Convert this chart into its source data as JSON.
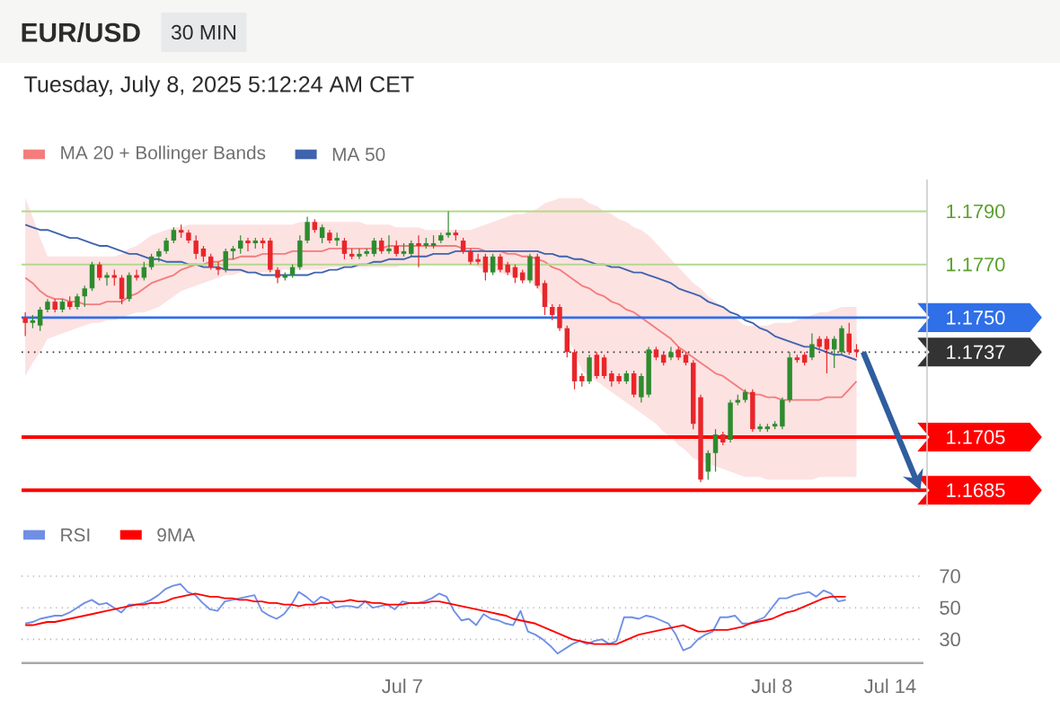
{
  "chart_data": [
    {
      "type": "candlestick",
      "title": "EUR/USD",
      "subtitle": "Tuesday, July 8, 2025 5:12:24 AM CET",
      "annotations": [
        "30 MIN"
      ],
      "categories": [
        null,
        null,
        null,
        null,
        null,
        null,
        null,
        null,
        null,
        null,
        null,
        null,
        null,
        null,
        null,
        null,
        null,
        null,
        null,
        null,
        null,
        null,
        null,
        null,
        null,
        null,
        null,
        null,
        null,
        null,
        null,
        null,
        null,
        null,
        null,
        null,
        null,
        null,
        null,
        null,
        null,
        null,
        null,
        null,
        null,
        null,
        null,
        null,
        null,
        null,
        null,
        null,
        null,
        null,
        null,
        null,
        null,
        null,
        null,
        null,
        null,
        null,
        null,
        null,
        null,
        null,
        null,
        null,
        null,
        null,
        null,
        null,
        null,
        null,
        null,
        null,
        null,
        null,
        null,
        null,
        null,
        null,
        null,
        null,
        null,
        null,
        null,
        null,
        null,
        null,
        null,
        null,
        null,
        null,
        null,
        null,
        null,
        null,
        null,
        null,
        null,
        null,
        null,
        null,
        null,
        null,
        null,
        null,
        null,
        null,
        null,
        null,
        null
      ],
      "ohlc": [
        [
          1.175,
          1.1752,
          1.1743,
          1.1748
        ],
        [
          1.1748,
          1.1751,
          1.1746,
          1.1749
        ],
        [
          1.1747,
          1.1754,
          1.1745,
          1.1753
        ],
        [
          1.1753,
          1.1757,
          1.1752,
          1.1756
        ],
        [
          1.1756,
          1.1757,
          1.1752,
          1.1753
        ],
        [
          1.1753,
          1.1757,
          1.1752,
          1.1756
        ],
        [
          1.1756,
          1.1758,
          1.1753,
          1.1754
        ],
        [
          1.1754,
          1.1759,
          1.1753,
          1.1758
        ],
        [
          1.1758,
          1.1762,
          1.1754,
          1.1761
        ],
        [
          1.1761,
          1.1771,
          1.176,
          1.177
        ],
        [
          1.177,
          1.1771,
          1.1764,
          1.1765
        ],
        [
          1.1765,
          1.1767,
          1.1762,
          1.1766
        ],
        [
          1.1766,
          1.1768,
          1.1762,
          1.1765
        ],
        [
          1.1765,
          1.1766,
          1.1755,
          1.1757
        ],
        [
          1.1757,
          1.1767,
          1.1756,
          1.1766
        ],
        [
          1.1766,
          1.1768,
          1.1764,
          1.1765
        ],
        [
          1.1765,
          1.1771,
          1.1764,
          1.1769
        ],
        [
          1.1769,
          1.1774,
          1.1768,
          1.1773
        ],
        [
          1.1773,
          1.1776,
          1.1771,
          1.1775
        ],
        [
          1.1775,
          1.178,
          1.1774,
          1.1779
        ],
        [
          1.1779,
          1.1784,
          1.1778,
          1.1783
        ],
        [
          1.1783,
          1.1785,
          1.178,
          1.1782
        ],
        [
          1.1782,
          1.1783,
          1.1778,
          1.1779
        ],
        [
          1.1779,
          1.1781,
          1.1772,
          1.1774
        ],
        [
          1.1776,
          1.1777,
          1.1771,
          1.1773
        ],
        [
          1.1773,
          1.1774,
          1.1768,
          1.1769
        ],
        [
          1.1769,
          1.1771,
          1.1766,
          1.1768
        ],
        [
          1.1768,
          1.1776,
          1.1767,
          1.1775
        ],
        [
          1.1775,
          1.1777,
          1.1772,
          1.1776
        ],
        [
          1.1776,
          1.1781,
          1.1774,
          1.1779
        ],
        [
          1.1779,
          1.178,
          1.1775,
          1.1778
        ],
        [
          1.1778,
          1.178,
          1.1776,
          1.1779
        ],
        [
          1.1779,
          1.178,
          1.1776,
          1.1778
        ],
        [
          1.1779,
          1.178,
          1.1767,
          1.1768
        ],
        [
          1.1768,
          1.1769,
          1.1763,
          1.1765
        ],
        [
          1.1765,
          1.1767,
          1.1764,
          1.1766
        ],
        [
          1.1766,
          1.177,
          1.1765,
          1.1769
        ],
        [
          1.1769,
          1.1781,
          1.1768,
          1.1779
        ],
        [
          1.1779,
          1.1788,
          1.1778,
          1.1786
        ],
        [
          1.1786,
          1.1787,
          1.1782,
          1.1783
        ],
        [
          1.178,
          1.1785,
          1.1778,
          1.1784
        ],
        [
          1.1782,
          1.1783,
          1.1778,
          1.1779
        ],
        [
          1.1779,
          1.1782,
          1.1777,
          1.178
        ],
        [
          1.1779,
          1.178,
          1.1772,
          1.1774
        ],
        [
          1.1774,
          1.1776,
          1.1772,
          1.1773
        ],
        [
          1.1773,
          1.1776,
          1.1772,
          1.1774
        ],
        [
          1.1774,
          1.1776,
          1.1773,
          1.1775
        ],
        [
          1.1774,
          1.178,
          1.1773,
          1.1779
        ],
        [
          1.1779,
          1.178,
          1.1774,
          1.1775
        ],
        [
          1.1775,
          1.1781,
          1.1774,
          1.1776
        ],
        [
          1.1777,
          1.1779,
          1.1773,
          1.1774
        ],
        [
          1.1774,
          1.1778,
          1.1773,
          1.1775
        ],
        [
          1.1774,
          1.1779,
          1.1773,
          1.1778
        ],
        [
          1.1778,
          1.1781,
          1.1769,
          1.1777
        ],
        [
          1.1777,
          1.178,
          1.1776,
          1.1778
        ],
        [
          1.1777,
          1.1781,
          1.1776,
          1.1778
        ],
        [
          1.1779,
          1.1782,
          1.1778,
          1.1781
        ],
        [
          1.1781,
          1.179,
          1.178,
          1.1782
        ],
        [
          1.1782,
          1.1783,
          1.1779,
          1.1781
        ],
        [
          1.1779,
          1.178,
          1.1774,
          1.1775
        ],
        [
          1.1775,
          1.1776,
          1.177,
          1.1771
        ],
        [
          1.1772,
          1.1774,
          1.177,
          1.1771
        ],
        [
          1.1773,
          1.1774,
          1.1764,
          1.1767
        ],
        [
          1.1767,
          1.1774,
          1.1766,
          1.1773
        ],
        [
          1.1773,
          1.1774,
          1.1767,
          1.1768
        ],
        [
          1.177,
          1.1771,
          1.1766,
          1.1767
        ],
        [
          1.1769,
          1.177,
          1.1763,
          1.1765
        ],
        [
          1.1767,
          1.1768,
          1.1763,
          1.1764
        ],
        [
          1.1764,
          1.1774,
          1.1763,
          1.1773
        ],
        [
          1.1773,
          1.1774,
          1.1761,
          1.1762
        ],
        [
          1.1763,
          1.1764,
          1.1751,
          1.1754
        ],
        [
          1.1754,
          1.1755,
          1.1749,
          1.1751
        ],
        [
          1.1754,
          1.1755,
          1.1745,
          1.1746
        ],
        [
          1.1746,
          1.1747,
          1.1735,
          1.1737
        ],
        [
          1.1737,
          1.1738,
          1.1723,
          1.1726
        ],
        [
          1.1728,
          1.1729,
          1.1724,
          1.1726
        ],
        [
          1.1726,
          1.1736,
          1.1725,
          1.1735
        ],
        [
          1.1736,
          1.1737,
          1.1727,
          1.1728
        ],
        [
          1.1735,
          1.1736,
          1.1727,
          1.1728
        ],
        [
          1.1729,
          1.173,
          1.1724,
          1.1726
        ],
        [
          1.1728,
          1.1729,
          1.1725,
          1.1726
        ],
        [
          1.1726,
          1.173,
          1.1725,
          1.1729
        ],
        [
          1.1729,
          1.173,
          1.172,
          1.1721
        ],
        [
          1.172,
          1.1729,
          1.1718,
          1.1728
        ],
        [
          1.1721,
          1.1739,
          1.172,
          1.1738
        ],
        [
          1.1738,
          1.1739,
          1.1734,
          1.1735
        ],
        [
          1.1736,
          1.1737,
          1.1732,
          1.1733
        ],
        [
          1.1735,
          1.1739,
          1.1734,
          1.1737
        ],
        [
          1.1738,
          1.1739,
          1.1734,
          1.1735
        ],
        [
          1.1736,
          1.1737,
          1.1732,
          1.1733
        ],
        [
          1.1733,
          1.1734,
          1.1708,
          1.171
        ],
        [
          1.172,
          1.1721,
          1.1688,
          1.1689
        ],
        [
          1.1692,
          1.17,
          1.1689,
          1.1699
        ],
        [
          1.1699,
          1.1708,
          1.1692,
          1.1706
        ],
        [
          1.1706,
          1.1707,
          1.1702,
          1.1703
        ],
        [
          1.1704,
          1.1719,
          1.1703,
          1.1718
        ],
        [
          1.1718,
          1.1721,
          1.1717,
          1.1719
        ],
        [
          1.1719,
          1.1723,
          1.1718,
          1.1722
        ],
        [
          1.1722,
          1.1723,
          1.1707,
          1.1708
        ],
        [
          1.1708,
          1.171,
          1.1707,
          1.1709
        ],
        [
          1.1708,
          1.171,
          1.1707,
          1.1709
        ],
        [
          1.1709,
          1.1711,
          1.1708,
          1.171
        ],
        [
          1.1709,
          1.172,
          1.1708,
          1.1719
        ],
        [
          1.1719,
          1.1737,
          1.1718,
          1.1735
        ],
        [
          1.1735,
          1.1736,
          1.1733,
          1.1734
        ],
        [
          1.1736,
          1.1737,
          1.1732,
          1.1733
        ],
        [
          1.1735,
          1.1744,
          1.1734,
          1.174
        ],
        [
          1.1742,
          1.1743,
          1.1738,
          1.1739
        ],
        [
          1.1742,
          1.1743,
          1.1729,
          1.1738
        ],
        [
          1.1738,
          1.1743,
          1.1731,
          1.1742
        ],
        [
          1.1737,
          1.1747,
          1.1736,
          1.1746
        ],
        [
          1.1744,
          1.1748,
          1.1736,
          1.1737
        ],
        [
          1.1738,
          1.174,
          1.1735,
          1.1737
        ]
      ],
      "colors": [
        "#e8262a",
        "#2e8b2e",
        "#2e8b2e",
        "#2e8b2e",
        "#e8262a",
        "#2e8b2e",
        "#e8262a",
        "#2e8b2e",
        "#2e8b2e",
        "#2e8b2e",
        "#e8262a",
        "#2e8b2e",
        "#e8262a",
        "#e8262a",
        "#2e8b2e",
        "#e8262a",
        "#2e8b2e",
        "#2e8b2e",
        "#2e8b2e",
        "#2e8b2e",
        "#2e8b2e",
        "#e8262a",
        "#e8262a",
        "#e8262a",
        "#e8262a",
        "#e8262a",
        "#e8262a",
        "#2e8b2e",
        "#2e8b2e",
        "#2e8b2e",
        "#e8262a",
        "#2e8b2e",
        "#e8262a",
        "#e8262a",
        "#e8262a",
        "#2e8b2e",
        "#2e8b2e",
        "#2e8b2e",
        "#2e8b2e",
        "#e8262a",
        "#2e8b2e",
        "#e8262a",
        "#2e8b2e",
        "#e8262a",
        "#e8262a",
        "#2e8b2e",
        "#2e8b2e",
        "#2e8b2e",
        "#e8262a",
        "#2e8b2e",
        "#e8262a",
        "#2e8b2e",
        "#2e8b2e",
        "#e8262a",
        "#2e8b2e",
        "#2e8b2e",
        "#2e8b2e",
        "#2e8b2e",
        "#e8262a",
        "#e8262a",
        "#e8262a",
        "#e8262a",
        "#e8262a",
        "#2e8b2e",
        "#e8262a",
        "#e8262a",
        "#e8262a",
        "#e8262a",
        "#2e8b2e",
        "#e8262a",
        "#e8262a",
        "#e8262a",
        "#e8262a",
        "#e8262a",
        "#e8262a",
        "#e8262a",
        "#2e8b2e",
        "#e8262a",
        "#e8262a",
        "#e8262a",
        "#e8262a",
        "#2e8b2e",
        "#e8262a",
        "#2e8b2e",
        "#2e8b2e",
        "#e8262a",
        "#e8262a",
        "#2e8b2e",
        "#e8262a",
        "#e8262a",
        "#e8262a",
        "#e8262a",
        "#2e8b2e",
        "#2e8b2e",
        "#e8262a",
        "#2e8b2e",
        "#2e8b2e",
        "#2e8b2e",
        "#e8262a",
        "#2e8b2e",
        "#2e8b2e",
        "#2e8b2e",
        "#2e8b2e",
        "#2e8b2e",
        "#e8262a",
        "#e8262a",
        "#2e8b2e",
        "#e8262a",
        "#e8262a",
        "#2e8b2e",
        "#2e8b2e",
        "#e8262a",
        "#e8262a"
      ],
      "series": [
        {
          "name": "MA 20 + Bollinger Bands",
          "type": "line",
          "color": "#f47c7c",
          "values": [
            1.1765,
            1.1763,
            1.176,
            1.1758,
            1.1757,
            1.1757,
            1.1756,
            1.1756,
            1.1755,
            1.1755,
            1.1755,
            1.1756,
            1.1756,
            1.1756,
            1.1758,
            1.1759,
            1.1761,
            1.1763,
            1.1764,
            1.1765,
            1.1766,
            1.1768,
            1.1769,
            1.177,
            1.177,
            1.1771,
            1.1771,
            1.1772,
            1.1772,
            1.1773,
            1.1773,
            1.1773,
            1.1774,
            1.1774,
            1.1774,
            1.1774,
            1.1775,
            1.1775,
            1.1775,
            1.1775,
            1.1775,
            1.1776,
            1.1776,
            1.1776,
            1.1776,
            1.1776,
            1.1776,
            1.1776,
            1.1776,
            1.1777,
            1.1777,
            1.1777,
            1.1777,
            1.1777,
            1.1777,
            1.1777,
            1.1777,
            1.1777,
            1.1777,
            1.1776,
            1.1776,
            1.1776,
            1.1775,
            1.1775,
            1.1775,
            1.1774,
            1.1774,
            1.1773,
            1.1773,
            1.1772,
            1.1771,
            1.1769,
            1.1768,
            1.1766,
            1.1764,
            1.1762,
            1.1761,
            1.1759,
            1.1758,
            1.1756,
            1.1755,
            1.1753,
            1.1752,
            1.175,
            1.1748,
            1.1746,
            1.1744,
            1.1742,
            1.1739,
            1.1737,
            1.1735,
            1.1733,
            1.1731,
            1.1729,
            1.1728,
            1.1726,
            1.1724,
            1.1722,
            1.1721,
            1.1721,
            1.172,
            1.172,
            1.1719,
            1.1719,
            1.1719,
            1.1719,
            1.1719,
            1.1719,
            1.172,
            1.172,
            1.172,
            1.1723,
            1.1726
          ],
          "upper": [
            1.1795,
            1.1788,
            1.178,
            1.1773,
            1.1773,
            1.1773,
            1.1773,
            1.1773,
            1.1773,
            1.1773,
            1.1773,
            1.1773,
            1.1773,
            1.1774,
            1.1776,
            1.1777,
            1.1779,
            1.1781,
            1.1782,
            1.1783,
            1.1784,
            1.1784,
            1.1785,
            1.1785,
            1.1785,
            1.1785,
            1.1785,
            1.1785,
            1.1785,
            1.1785,
            1.1785,
            1.1785,
            1.1785,
            1.1785,
            1.1785,
            1.1785,
            1.1785,
            1.1786,
            1.1786,
            1.1786,
            1.1786,
            1.1786,
            1.1786,
            1.1786,
            1.1786,
            1.1786,
            1.1785,
            1.1785,
            1.1785,
            1.1785,
            1.1784,
            1.1784,
            1.1784,
            1.1784,
            1.1783,
            1.1783,
            1.1783,
            1.1783,
            1.1783,
            1.1783,
            1.1783,
            1.1784,
            1.1785,
            1.1786,
            1.1787,
            1.1788,
            1.1789,
            1.1789,
            1.179,
            1.1791,
            1.1793,
            1.1794,
            1.1795,
            1.1795,
            1.1795,
            1.1795,
            1.1793,
            1.1792,
            1.179,
            1.1789,
            1.1787,
            1.1786,
            1.1784,
            1.1783,
            1.1781,
            1.1778,
            1.1775,
            1.1772,
            1.1769,
            1.1766,
            1.1763,
            1.1761,
            1.1758,
            1.1756,
            1.1754,
            1.1752,
            1.1749,
            1.1747,
            1.1747,
            1.1747,
            1.1747,
            1.1748,
            1.1748,
            1.1748,
            1.1749,
            1.175,
            1.1751,
            1.1752,
            1.1752,
            1.1753,
            1.1754,
            1.1754,
            1.1754
          ],
          "lower": [
            1.1728,
            1.1733,
            1.1737,
            1.1742,
            1.1743,
            1.1744,
            1.1745,
            1.1746,
            1.1747,
            1.1748,
            1.1748,
            1.1749,
            1.1749,
            1.175,
            1.1751,
            1.1752,
            1.1752,
            1.1753,
            1.1754,
            1.1756,
            1.1758,
            1.176,
            1.1761,
            1.1762,
            1.1763,
            1.1764,
            1.1765,
            1.1766,
            1.1766,
            1.1767,
            1.1767,
            1.1767,
            1.1767,
            1.1767,
            1.1768,
            1.1768,
            1.1768,
            1.1768,
            1.1768,
            1.1768,
            1.1768,
            1.1769,
            1.1769,
            1.1769,
            1.1769,
            1.1769,
            1.1769,
            1.1769,
            1.1769,
            1.1769,
            1.1769,
            1.177,
            1.177,
            1.177,
            1.177,
            1.177,
            1.177,
            1.177,
            1.177,
            1.177,
            1.177,
            1.1769,
            1.1768,
            1.1768,
            1.1767,
            1.1766,
            1.1766,
            1.1765,
            1.1764,
            1.1761,
            1.1757,
            1.1754,
            1.175,
            1.1743,
            1.1737,
            1.173,
            1.1728,
            1.1726,
            1.1724,
            1.1722,
            1.172,
            1.1718,
            1.1716,
            1.1714,
            1.1712,
            1.171,
            1.1707,
            1.1705,
            1.1702,
            1.17,
            1.1697,
            1.1696,
            1.1695,
            1.1694,
            1.1693,
            1.1692,
            1.1691,
            1.169,
            1.169,
            1.169,
            1.1689,
            1.1689,
            1.1689,
            1.1689,
            1.1689,
            1.1689,
            1.1689,
            1.169,
            1.169,
            1.169,
            1.169,
            1.169,
            1.169
          ]
        },
        {
          "name": "MA 50",
          "type": "line",
          "color": "#3f63ad",
          "values": [
            1.1785,
            1.1784,
            1.1783,
            1.1783,
            1.1782,
            1.1781,
            1.178,
            1.178,
            1.1779,
            1.1778,
            1.1777,
            1.1777,
            1.1776,
            1.1775,
            1.1774,
            1.1774,
            1.1773,
            1.1772,
            1.1772,
            1.1771,
            1.1771,
            1.1771,
            1.177,
            1.177,
            1.1769,
            1.1769,
            1.1769,
            1.1768,
            1.1768,
            1.1768,
            1.1767,
            1.1767,
            1.1766,
            1.1766,
            1.1766,
            1.1766,
            1.1766,
            1.1766,
            1.1766,
            1.1767,
            1.1767,
            1.1768,
            1.1768,
            1.1769,
            1.1769,
            1.177,
            1.177,
            1.1771,
            1.1771,
            1.1772,
            1.1772,
            1.1772,
            1.1773,
            1.1773,
            1.1773,
            1.1774,
            1.1774,
            1.1774,
            1.1775,
            1.1775,
            1.1775,
            1.1775,
            1.1775,
            1.1775,
            1.1775,
            1.1775,
            1.1775,
            1.1775,
            1.1775,
            1.1775,
            1.1774,
            1.1774,
            1.1773,
            1.1773,
            1.1772,
            1.1772,
            1.1771,
            1.177,
            1.177,
            1.1769,
            1.1769,
            1.1768,
            1.1767,
            1.1767,
            1.1766,
            1.1765,
            1.1764,
            1.1763,
            1.1761,
            1.176,
            1.1759,
            1.1758,
            1.1756,
            1.1755,
            1.1754,
            1.1752,
            1.1751,
            1.1749,
            1.1748,
            1.1746,
            1.1745,
            1.1743,
            1.1742,
            1.1741,
            1.174,
            1.1739,
            1.1739,
            1.1738,
            1.1737,
            1.1736,
            1.1736,
            1.1735,
            1.1734
          ]
        }
      ],
      "ref_lines": [
        {
          "axis": "y",
          "value": 1.179,
          "color": "#b3d98c"
        },
        {
          "axis": "y",
          "value": 1.177,
          "color": "#b3d98c"
        },
        {
          "axis": "y",
          "value": 1.175,
          "color": "#2f6fe8"
        },
        {
          "axis": "y",
          "value": 1.1737,
          "color": "#333333",
          "line_style": "dotted"
        },
        {
          "axis": "y",
          "value": 1.1705,
          "color": "#ff0000"
        },
        {
          "axis": "y",
          "value": 1.1685,
          "color": "#ff0000"
        }
      ],
      "yticks": [
        {
          "value": 1.179,
          "label": "1.1790"
        },
        {
          "value": 1.177,
          "label": "1.1770"
        },
        {
          "value": 1.175,
          "label": "1.1750"
        },
        {
          "value": 1.1737,
          "label": "1.1737"
        },
        {
          "value": 1.1705,
          "label": "1.1705"
        },
        {
          "value": 1.1685,
          "label": "1.1685"
        }
      ],
      "ylim": [
        1.1679,
        1.1802
      ],
      "legend": "top left",
      "tick_labels": "y"
    },
    {
      "type": "line",
      "series": [
        {
          "name": "RSI",
          "color": "#6f8fe6",
          "values": [
            40,
            41,
            43,
            44,
            45,
            45,
            47,
            50,
            53,
            55,
            52,
            53,
            50,
            47,
            52,
            52,
            53,
            55,
            58,
            62,
            64,
            65,
            60,
            58,
            53,
            49,
            48,
            54,
            55,
            56,
            57,
            58,
            48,
            45,
            43,
            46,
            52,
            60,
            57,
            53,
            57,
            55,
            50,
            51,
            51,
            50,
            54,
            50,
            51,
            52,
            49,
            54,
            53,
            53,
            54,
            56,
            59,
            57,
            48,
            42,
            43,
            39,
            46,
            43,
            42,
            40,
            39,
            48,
            35,
            33,
            30,
            26,
            21,
            24,
            27,
            29,
            27,
            29,
            30,
            27,
            29,
            44,
            44,
            43,
            45,
            44,
            42,
            40,
            33,
            23,
            25,
            30,
            33,
            35,
            44,
            44,
            45,
            40,
            40,
            42,
            44,
            50,
            56,
            56,
            58,
            59,
            60,
            57,
            61,
            59,
            54,
            55,
            null,
            null,
            null,
            null,
            null,
            null,
            null,
            null,
            null,
            null
          ]
        },
        {
          "name": "9MA",
          "color": "#ff0000",
          "values": [
            39,
            39,
            40,
            41,
            41,
            42,
            43,
            44,
            45,
            46,
            47,
            48,
            49,
            50,
            51,
            52,
            52,
            53,
            53,
            54,
            56,
            57,
            58,
            59,
            58,
            57,
            57,
            56,
            56,
            55,
            55,
            54,
            54,
            53,
            53,
            52,
            52,
            51,
            52,
            52,
            53,
            53,
            54,
            54,
            55,
            54,
            54,
            53,
            53,
            52,
            52,
            52,
            53,
            53,
            53,
            54,
            54,
            53,
            52,
            51,
            50,
            49,
            48,
            47,
            46,
            45,
            43,
            42,
            41,
            40,
            38,
            36,
            34,
            32,
            30,
            29,
            28,
            27,
            27,
            27,
            27,
            29,
            31,
            33,
            34,
            35,
            36,
            37,
            38,
            39,
            37,
            35,
            35,
            36,
            36,
            36,
            37,
            38,
            40,
            41,
            42,
            43,
            45,
            47,
            48,
            50,
            52,
            54,
            56,
            57,
            57,
            57,
            null,
            null,
            null,
            null,
            null,
            null,
            null,
            null,
            null,
            null
          ]
        }
      ],
      "ylim": [
        15,
        70
      ],
      "categories": [
        null,
        null,
        null,
        null,
        null,
        null,
        null,
        null,
        null,
        null,
        null,
        null,
        null,
        null,
        null,
        null,
        null,
        null,
        null,
        null,
        null,
        null,
        null,
        null,
        null,
        null,
        null,
        null,
        null,
        null,
        null,
        null,
        null,
        null,
        null,
        null,
        null,
        null,
        null,
        null,
        null,
        null,
        null,
        null,
        null,
        null,
        null,
        null,
        null,
        null,
        null,
        "Jul 7",
        null,
        null,
        null,
        null,
        null,
        null,
        null,
        null,
        null,
        null,
        null,
        null,
        null,
        null,
        null,
        null,
        null,
        null,
        null,
        null,
        null,
        null,
        null,
        null,
        null,
        null,
        null,
        null,
        null,
        null,
        null,
        null,
        null,
        null,
        null,
        null,
        null,
        null,
        null,
        null,
        null,
        null,
        null,
        null,
        null,
        null,
        null,
        null,
        null,
        "Jul 8",
        null,
        null,
        null,
        null,
        null,
        null,
        null,
        null,
        null,
        null,
        null,
        null,
        null,
        null,
        null,
        "Jul 14",
        null,
        null,
        null,
        null
      ],
      "yticks": [
        30,
        50,
        70
      ],
      "grid": "y",
      "legend": "top left"
    }
  ]
}
